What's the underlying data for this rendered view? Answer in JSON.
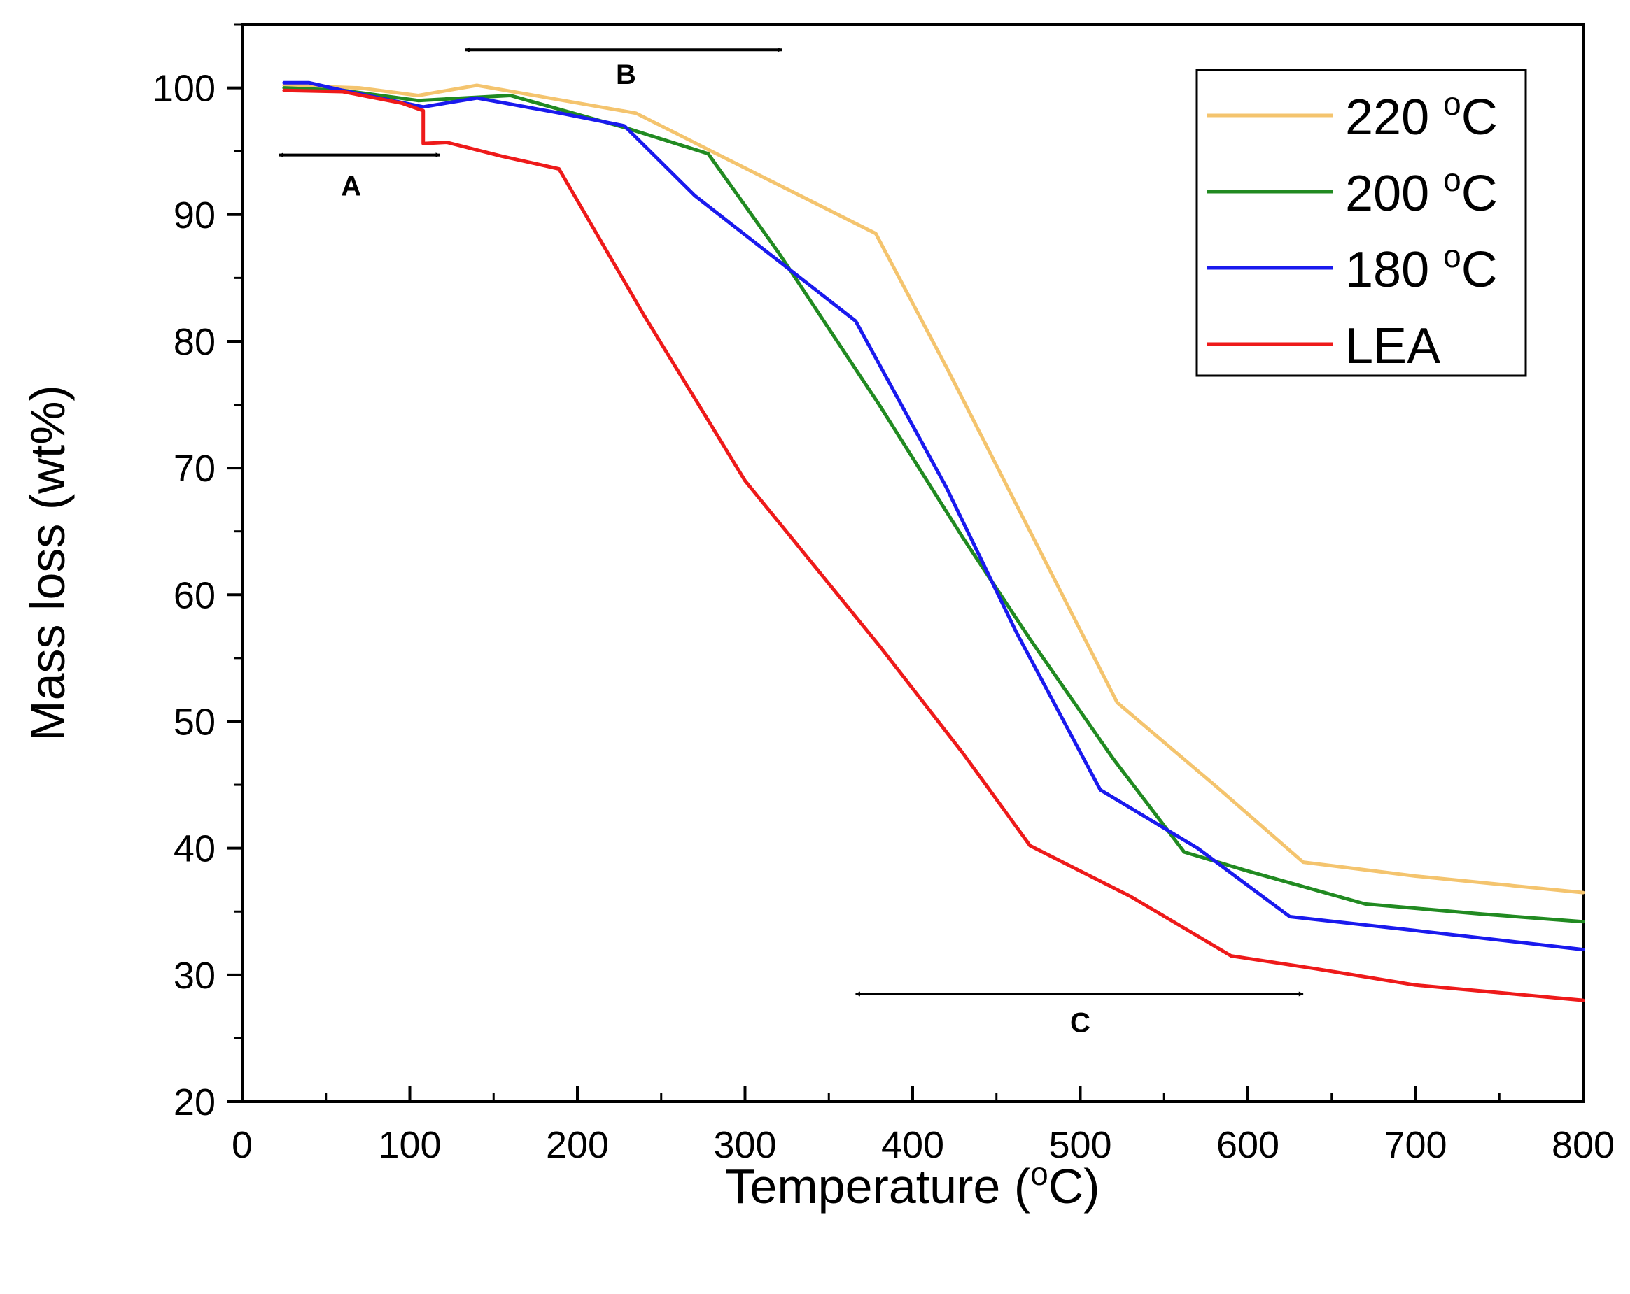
{
  "chart_data": {
    "type": "line",
    "xlabel": "Temperature (",
    "xlabel_sup": "o",
    "xlabel_end": "C)",
    "ylabel": "Mass loss (wt%)",
    "xlim": [
      0,
      800
    ],
    "ylim": [
      20,
      105
    ],
    "x_ticks": [
      0,
      100,
      200,
      300,
      400,
      500,
      600,
      700,
      800
    ],
    "y_ticks": [
      20,
      30,
      40,
      50,
      60,
      70,
      80,
      90,
      100
    ],
    "x_tick_labels": [
      "0",
      "100",
      "200",
      "300",
      "400",
      "500",
      "600",
      "700",
      "800"
    ],
    "y_tick_labels": [
      "20",
      "30",
      "40",
      "50",
      "60",
      "70",
      "80",
      "90",
      "100"
    ],
    "grid": false,
    "legend_position": "top-right",
    "series": [
      {
        "name": "220 °C",
        "label_main": "220 ",
        "label_sup": "o",
        "label_end": "C",
        "color": "#f4c46e",
        "x": [
          25,
          70,
          105,
          140,
          235,
          280,
          378,
          420,
          470,
          522,
          580,
          633,
          700,
          800
        ],
        "y": [
          100.2,
          100.0,
          99.4,
          100.2,
          98.0,
          95.0,
          88.5,
          78.0,
          65.0,
          51.5,
          45.0,
          38.9,
          37.8,
          36.5
        ]
      },
      {
        "name": "200 °C",
        "label_main": "200 ",
        "label_sup": "o",
        "label_end": "C",
        "color": "#218a21",
        "x": [
          25,
          60,
          105,
          160,
          230,
          278,
          320,
          380,
          430,
          470,
          520,
          562,
          600,
          670,
          740,
          800
        ],
        "y": [
          100.0,
          99.8,
          99.0,
          99.4,
          96.8,
          94.8,
          87.0,
          75.0,
          64.5,
          56.5,
          47.0,
          39.7,
          38.2,
          35.6,
          34.8,
          34.2
        ]
      },
      {
        "name": "180 °C",
        "label_main": "180 ",
        "label_sup": "o",
        "label_end": "C",
        "color": "#1a1aee",
        "x": [
          25,
          40,
          60,
          108,
          140,
          190,
          228,
          270,
          366,
          420,
          462,
          512,
          570,
          625,
          700,
          800
        ],
        "y": [
          100.4,
          100.4,
          99.8,
          98.5,
          99.2,
          98.0,
          97.0,
          91.5,
          81.6,
          68.5,
          57.0,
          44.6,
          40.0,
          34.6,
          33.5,
          32.0
        ]
      },
      {
        "name": "LEA",
        "label_main": "LEA",
        "label_sup": "",
        "label_end": "",
        "color": "#ee1a1a",
        "x": [
          25,
          60,
          95,
          108,
          108,
          122,
          155,
          189,
          240,
          300,
          380,
          430,
          470,
          530,
          590,
          640,
          700,
          800
        ],
        "y": [
          99.8,
          99.7,
          98.8,
          98.2,
          95.6,
          95.7,
          94.6,
          93.6,
          82.0,
          69.0,
          56.0,
          47.5,
          40.2,
          36.2,
          31.5,
          30.5,
          29.2,
          28.0
        ]
      }
    ],
    "annotations": [
      {
        "label": "A",
        "x_from": 22,
        "x_to": 118,
        "y": 94.7,
        "label_x": 65,
        "label_y": 91.5
      },
      {
        "label": "B",
        "x_from": 133,
        "x_to": 322,
        "y": 103.0,
        "label_x": 229,
        "label_y": 100.3
      },
      {
        "label": "C",
        "x_from": 366,
        "x_to": 633,
        "y": 28.5,
        "label_x": 500,
        "label_y": 25.5
      }
    ]
  }
}
